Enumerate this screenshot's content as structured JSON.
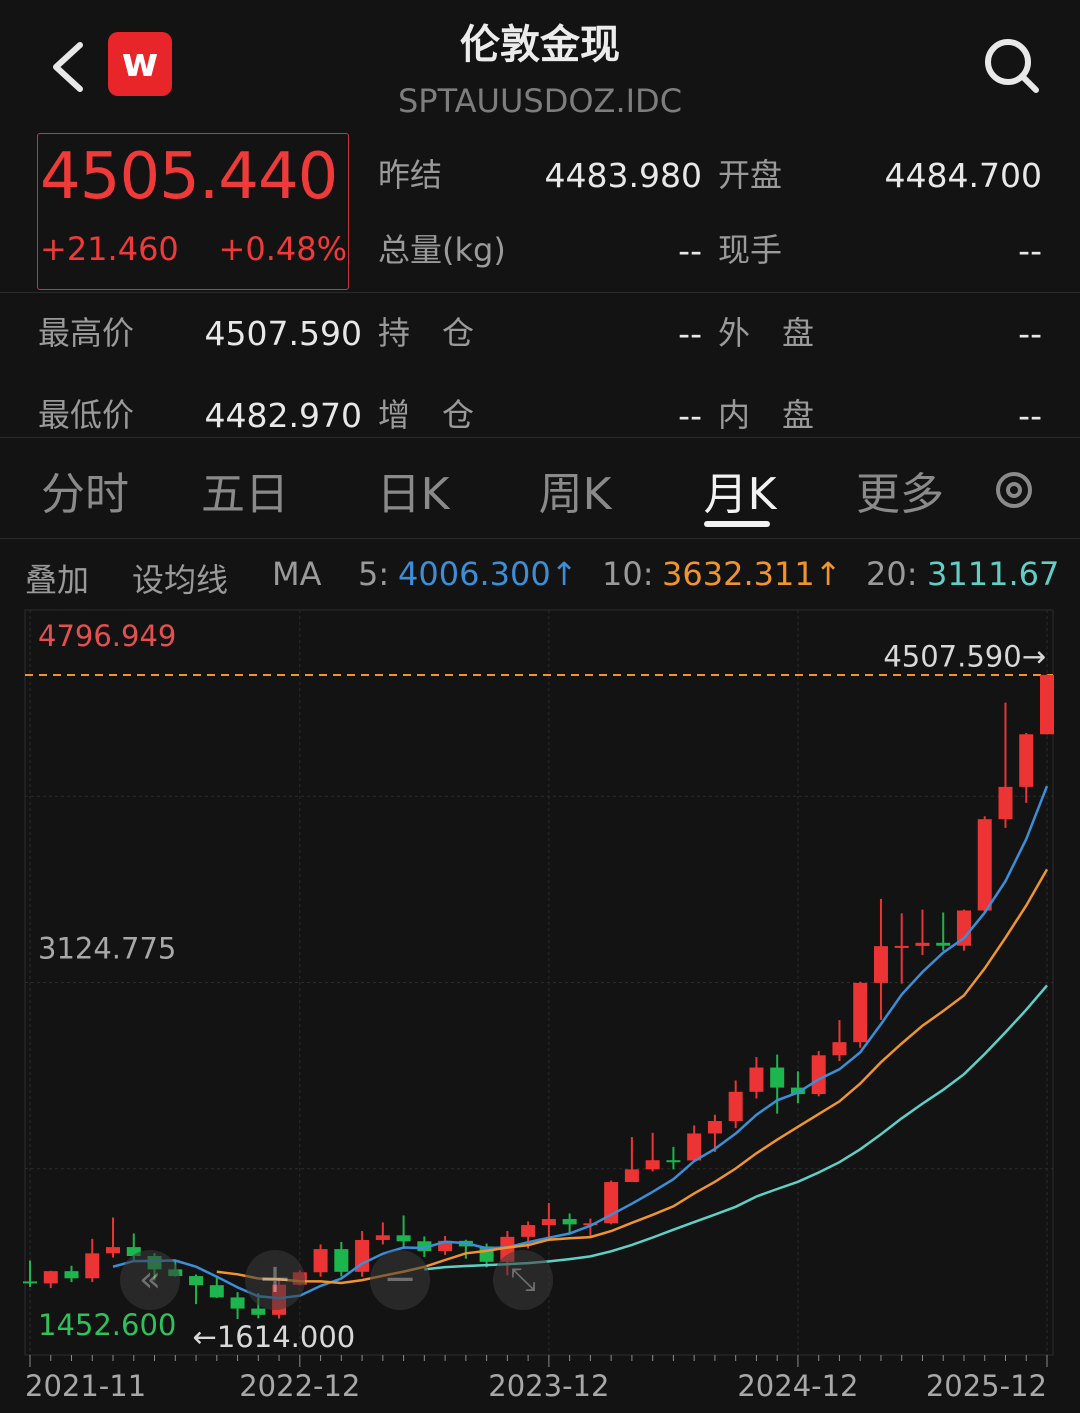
{
  "header": {
    "title": "伦敦金现",
    "code": "SPTAUUSDOZ.IDC"
  },
  "quote": {
    "price": "4505.440",
    "change": "+21.460",
    "change_pct": "+0.48%"
  },
  "fields": [
    {
      "label": "昨结",
      "value": "4483.980"
    },
    {
      "label": "开盘",
      "value": "4484.700"
    },
    {
      "label": "总量(kg)",
      "value": "--"
    },
    {
      "label": "现手",
      "value": "--"
    },
    {
      "label": "最高价",
      "value": "4507.590"
    },
    {
      "label": "持　仓",
      "value": "--"
    },
    {
      "label": "外　盘",
      "value": "--"
    },
    {
      "label": "最低价",
      "value": "4482.970"
    },
    {
      "label": "增　仓",
      "value": "--"
    },
    {
      "label": "内　盘",
      "value": "--"
    }
  ],
  "tabs": [
    "分时",
    "五日",
    "日K",
    "周K",
    "月K",
    "更多"
  ],
  "active_tab": 4,
  "toolbar": [
    "叠加",
    "设均线",
    "MA"
  ],
  "chart_data": {
    "type": "candlestick",
    "categories": [
      "2021-11",
      null,
      null,
      null,
      null,
      null,
      null,
      null,
      null,
      null,
      null,
      null,
      null,
      "2022-12",
      null,
      null,
      null,
      null,
      null,
      null,
      null,
      null,
      null,
      null,
      null,
      "2023-12",
      null,
      null,
      null,
      null,
      null,
      null,
      null,
      null,
      null,
      null,
      null,
      "2024-12",
      null,
      null,
      null,
      null,
      null,
      null,
      null,
      null,
      null,
      null,
      null,
      "2025-12"
    ],
    "open": [
      1783,
      1774,
      1829,
      1797,
      1909,
      1937,
      1897,
      1837,
      1807,
      1766,
      1711,
      1661,
      1633,
      1768,
      1824,
      1928,
      1826,
      1969,
      1990,
      1963,
      1919,
      1965,
      1940,
      1871,
      1983,
      2036,
      2063,
      2039,
      2044,
      2229,
      2286,
      2327,
      2326,
      2447,
      2503,
      2634,
      2743,
      2653,
      2624,
      2798,
      2857,
      3123,
      3288,
      3289,
      3303,
      3290,
      3448,
      3858,
      4003,
      4239
    ],
    "high": [
      1877,
      1831,
      1853,
      1974,
      2070,
      1998,
      1910,
      1879,
      1814,
      1808,
      1735,
      1730,
      1786,
      1833,
      1949,
      1960,
      2009,
      2048,
      2079,
      1985,
      1987,
      1970,
      1953,
      2009,
      2052,
      2135,
      2088,
      2065,
      2236,
      2431,
      2450,
      2387,
      2483,
      2531,
      2685,
      2790,
      2801,
      2726,
      2817,
      2956,
      3128,
      3500,
      3435,
      3452,
      3439,
      3452,
      3871,
      4381,
      4245,
      4507.59
    ],
    "low": [
      1758,
      1753,
      1780,
      1780,
      1890,
      1872,
      1787,
      1805,
      1681,
      1709,
      1614,
      1617,
      1616,
      1765,
      1804,
      1805,
      1804,
      1949,
      1932,
      1893,
      1902,
      1885,
      1846,
      1810,
      1931,
      1973,
      2002,
      1984,
      2039,
      2229,
      2277,
      2286,
      2320,
      2364,
      2471,
      2604,
      2536,
      2583,
      2614,
      2772,
      2832,
      2957,
      3120,
      3248,
      3268,
      3268,
      3436,
      3819,
      3931,
      4238
    ],
    "close": [
      1774,
      1829,
      1797,
      1909,
      1937,
      1897,
      1837,
      1807,
      1766,
      1711,
      1661,
      1633,
      1768,
      1824,
      1928,
      1826,
      1969,
      1990,
      1963,
      1919,
      1965,
      1940,
      1871,
      1983,
      2036,
      2063,
      2039,
      2044,
      2229,
      2286,
      2327,
      2326,
      2447,
      2503,
      2634,
      2743,
      2653,
      2624,
      2798,
      2857,
      3123,
      3288,
      3289,
      3303,
      3290,
      3448,
      3858,
      4003,
      4239,
      4505.44
    ],
    "up_color": "#ec3434",
    "down_color": "#1db54e",
    "series": [
      {
        "name": "5:",
        "color": "#3b8fd8",
        "last_label": "4006.300↑",
        "values": [
          null,
          null,
          null,
          null,
          1849,
          1874,
          1875,
          1877,
          1849,
          1804,
          1756,
          1716,
          1708,
          1719,
          1763,
          1796,
          1863,
          1907,
          1935,
          1933,
          1961,
          1955,
          1932,
          1936,
          1959,
          1979,
          1998,
          2033,
          2082,
          2132,
          2185,
          2242,
          2323,
          2378,
          2447,
          2531,
          2596,
          2631,
          2690,
          2735,
          2811,
          2938,
          3071,
          3172,
          3259,
          3324,
          3438,
          3580,
          3768,
          4006.3
        ]
      },
      {
        "name": "10:",
        "color": "#f0952e",
        "last_label": "3632.311↑",
        "values": [
          null,
          null,
          null,
          null,
          null,
          null,
          null,
          null,
          null,
          1826,
          1815,
          1796,
          1793,
          1784,
          1783,
          1776,
          1789,
          1808,
          1827,
          1848,
          1879,
          1909,
          1920,
          1935,
          1946,
          1970,
          1977,
          1982,
          2009,
          2046,
          2082,
          2120,
          2178,
          2230,
          2290,
          2358,
          2419,
          2477,
          2534,
          2591,
          2671,
          2767,
          2851,
          2931,
          2997,
          3067,
          3188,
          3326,
          3470,
          3632.311
        ]
      },
      {
        "name": "20:",
        "color": "#5fd0c6",
        "last_label": "3111.67",
        "values": [
          null,
          null,
          null,
          null,
          null,
          null,
          null,
          null,
          null,
          null,
          null,
          null,
          null,
          null,
          null,
          null,
          null,
          null,
          null,
          1837,
          1847,
          1852,
          1856,
          1860,
          1865,
          1873,
          1883,
          1895,
          1918,
          1947,
          1980,
          2015,
          2049,
          2083,
          2118,
          2164,
          2198,
          2230,
          2272,
          2318,
          2376,
          2444,
          2515,
          2581,
          2643,
          2713,
          2804,
          2901,
          3002,
          3111.67
        ]
      }
    ],
    "ylim": [
      1452.6,
      4796.949
    ],
    "yticks": [
      {
        "value": 4796.949,
        "label": "4796.949"
      },
      {
        "value": 3124.775,
        "label": "3124.775"
      },
      {
        "value": 1452.6,
        "label": "1452.600"
      }
    ],
    "high_marker": {
      "value": 4507.59,
      "label": "4507.590→"
    },
    "low_marker": {
      "value": 1614,
      "label": "←1614.000"
    },
    "grid": true
  }
}
